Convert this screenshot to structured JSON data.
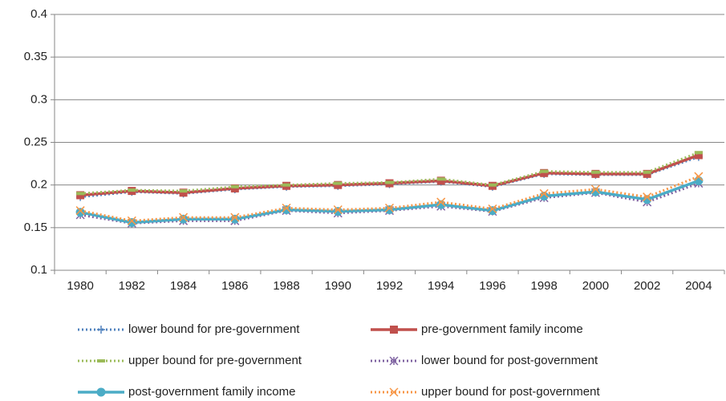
{
  "chart_data": {
    "type": "line",
    "categories": [
      "1980",
      "1982",
      "1984",
      "1986",
      "1988",
      "1990",
      "1992",
      "1994",
      "1996",
      "1998",
      "2000",
      "2002",
      "2004"
    ],
    "ylim": [
      0.1,
      0.4
    ],
    "yticks": [
      0.1,
      0.15,
      0.2,
      0.25,
      0.3,
      0.35,
      0.4
    ],
    "grid": true,
    "legend": "bottom",
    "series": [
      {
        "name": "lower bound for pre-government",
        "color": "#4f81bd",
        "marker": "plus",
        "dash": "dotted",
        "values": [
          0.186,
          0.192,
          0.19,
          0.195,
          0.198,
          0.199,
          0.201,
          0.204,
          0.198,
          0.213,
          0.212,
          0.212,
          0.233
        ]
      },
      {
        "name": "pre-government family income",
        "color": "#c0504d",
        "marker": "square",
        "dash": "solid",
        "values": [
          0.188,
          0.193,
          0.191,
          0.196,
          0.199,
          0.2,
          0.202,
          0.205,
          0.199,
          0.214,
          0.213,
          0.213,
          0.235
        ]
      },
      {
        "name": "upper bound for pre-government",
        "color": "#9bbb59",
        "marker": "dash",
        "dash": "dotted",
        "values": [
          0.19,
          0.194,
          0.193,
          0.198,
          0.2,
          0.202,
          0.203,
          0.207,
          0.2,
          0.216,
          0.215,
          0.215,
          0.238
        ]
      },
      {
        "name": "lower bound for post-government",
        "color": "#8064a2",
        "marker": "star",
        "dash": "dotted",
        "values": [
          0.165,
          0.155,
          0.158,
          0.158,
          0.17,
          0.167,
          0.17,
          0.175,
          0.169,
          0.185,
          0.191,
          0.18,
          0.202
        ]
      },
      {
        "name": "post-government family income",
        "color": "#4bacc6",
        "marker": "circle",
        "dash": "solid",
        "values": [
          0.168,
          0.156,
          0.16,
          0.16,
          0.171,
          0.169,
          0.171,
          0.177,
          0.17,
          0.187,
          0.192,
          0.183,
          0.205
        ]
      },
      {
        "name": "upper bound for post-government",
        "color": "#f79646",
        "marker": "cross",
        "dash": "dotted",
        "values": [
          0.17,
          0.158,
          0.162,
          0.162,
          0.173,
          0.171,
          0.173,
          0.18,
          0.172,
          0.19,
          0.195,
          0.186,
          0.21
        ]
      }
    ]
  }
}
